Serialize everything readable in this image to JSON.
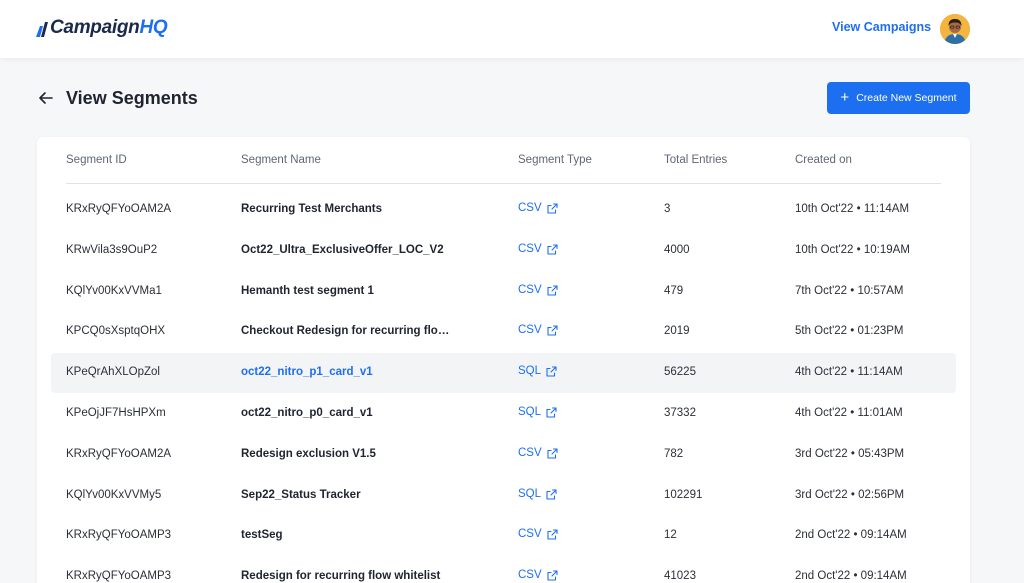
{
  "header": {
    "logo_prefix": "Campaign",
    "logo_suffix": "HQ",
    "nav_link": "View Campaigns"
  },
  "page": {
    "title": "View Segments",
    "create_button": "Create New Segment"
  },
  "colors": {
    "accent": "#1d6ff2",
    "row_highlight": "#f3f4f6"
  },
  "table": {
    "columns": [
      "Segment ID",
      "Segment Name",
      "Segment Type",
      "Total Entries",
      "Created on"
    ],
    "rows": [
      {
        "id": "KRxRyQFYoOAM2A",
        "name": "Recurring Test Merchants",
        "type": "CSV",
        "total": "3",
        "created": "10th Oct'22 • 11:14AM"
      },
      {
        "id": "KRwVila3s9OuP2",
        "name": "Oct22_Ultra_ExclusiveOffer_LOC_V2",
        "type": "CSV",
        "total": "4000",
        "created": "10th Oct'22 • 10:19AM"
      },
      {
        "id": "KQlYv00KxVVMa1",
        "name": "Hemanth test segment 1",
        "type": "CSV",
        "total": "479",
        "created": "7th Oct'22 • 10:57AM"
      },
      {
        "id": "KPCQ0sXsptqOHX",
        "name": "Checkout Redesign for recurring flow...",
        "type": "CSV",
        "total": "2019",
        "created": "5th Oct'22 • 01:23PM"
      },
      {
        "id": "KPeQrAhXLOpZol",
        "name": "oct22_nitro_p1_card_v1",
        "type": "SQL",
        "total": "56225",
        "created": "4th Oct'22 • 11:14AM"
      },
      {
        "id": "KPeOjJF7HsHPXm",
        "name": "oct22_nitro_p0_card_v1",
        "type": "SQL",
        "total": "37332",
        "created": "4th Oct'22 • 11:01AM"
      },
      {
        "id": "KRxRyQFYoOAM2A",
        "name": "Redesign exclusion V1.5",
        "type": "CSV",
        "total": "782",
        "created": "3rd Oct'22 • 05:43PM"
      },
      {
        "id": "KQlYv00KxVVMy5",
        "name": "Sep22_Status Tracker",
        "type": "SQL",
        "total": "102291",
        "created": "3rd Oct'22 • 02:56PM"
      },
      {
        "id": "KRxRyQFYoOAMP3",
        "name": "testSeg",
        "type": "CSV",
        "total": "12",
        "created": "2nd Oct'22 • 09:14AM"
      },
      {
        "id": "KRxRyQFYoOAMP3",
        "name": "Redesign for recurring flow whitelist",
        "type": "CSV",
        "total": "41023",
        "created": "2nd Oct'22 • 09:14AM"
      }
    ]
  }
}
